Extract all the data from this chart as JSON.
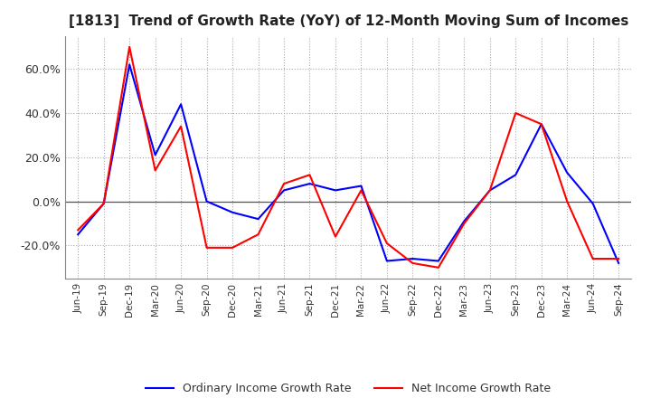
{
  "title": "[1813]  Trend of Growth Rate (YoY) of 12-Month Moving Sum of Incomes",
  "title_fontsize": 11,
  "ylim": [
    -0.35,
    0.75
  ],
  "ytick_values": [
    -0.2,
    0.0,
    0.2,
    0.4,
    0.6
  ],
  "background_color": "#ffffff",
  "grid_color": "#aaaaaa",
  "legend_labels": [
    "Ordinary Income Growth Rate",
    "Net Income Growth Rate"
  ],
  "line_colors": [
    "#0000ff",
    "#ff0000"
  ],
  "dates": [
    "Jun-19",
    "Sep-19",
    "Dec-19",
    "Mar-20",
    "Jun-20",
    "Sep-20",
    "Dec-20",
    "Mar-21",
    "Jun-21",
    "Sep-21",
    "Dec-21",
    "Mar-22",
    "Jun-22",
    "Sep-22",
    "Dec-22",
    "Mar-23",
    "Jun-23",
    "Sep-23",
    "Dec-23",
    "Mar-24",
    "Jun-24",
    "Sep-24"
  ],
  "ordinary_income_growth": [
    -0.15,
    -0.01,
    0.62,
    0.21,
    0.44,
    0.0,
    -0.05,
    -0.08,
    0.05,
    0.08,
    0.05,
    0.07,
    -0.27,
    -0.26,
    -0.27,
    -0.09,
    0.05,
    0.12,
    0.35,
    0.13,
    -0.01,
    -0.28
  ],
  "net_income_growth": [
    -0.13,
    -0.01,
    0.7,
    0.14,
    0.34,
    -0.21,
    -0.21,
    -0.15,
    0.08,
    0.12,
    -0.16,
    0.05,
    -0.19,
    -0.28,
    -0.3,
    -0.1,
    0.05,
    0.4,
    0.35,
    0.0,
    -0.26,
    -0.26
  ]
}
